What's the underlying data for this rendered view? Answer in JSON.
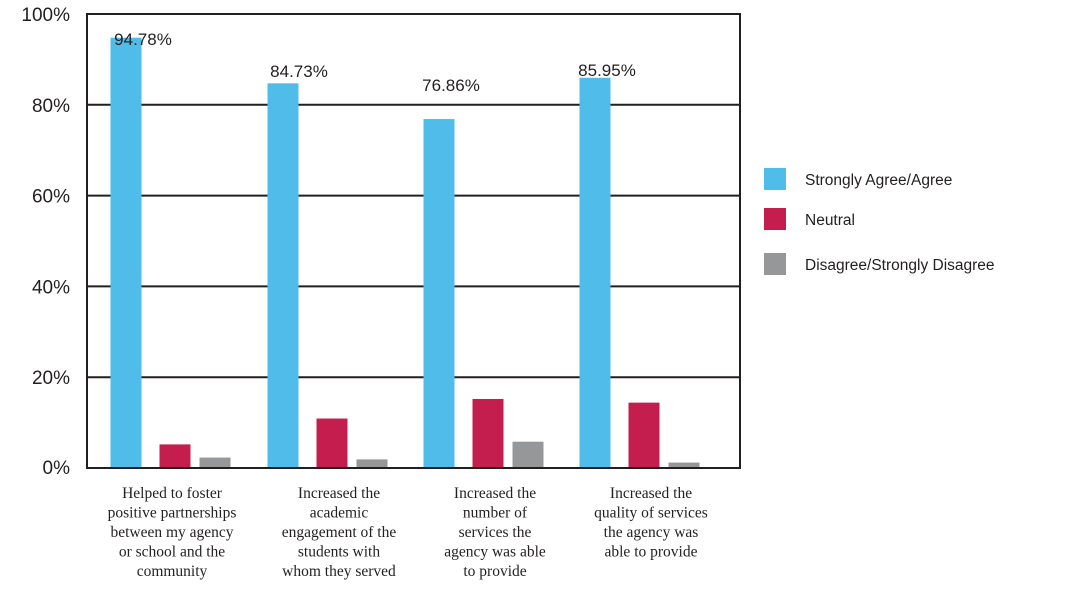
{
  "chart_data": {
    "type": "bar",
    "categories": [
      [
        "Helped to foster",
        "positive partnerships",
        "between my agency",
        "or school and the",
        "community"
      ],
      [
        "Increased the",
        "academic",
        "engagement of the",
        "students with",
        "whom they served"
      ],
      [
        "Increased the",
        "number of",
        "services the",
        "agency was able",
        "to provide"
      ],
      [
        "Increased the",
        "quality of services",
        "the agency was",
        "able to provide"
      ]
    ],
    "series": [
      {
        "name": "Strongly Agree/Agree",
        "color": "#4fbce9",
        "values": [
          94.78,
          84.73,
          76.86,
          85.95
        ]
      },
      {
        "name": "Neutral",
        "color": "#c41e4e",
        "values": [
          5.2,
          10.9,
          15.2,
          14.4
        ]
      },
      {
        "name": "Disagree/Strongly Disagree",
        "color": "#969799",
        "values": [
          2.3,
          1.9,
          5.8,
          1.2
        ]
      }
    ],
    "data_labels": [
      "94.78%",
      "84.73%",
      "76.86%",
      "85.95%"
    ],
    "y_ticks": [
      {
        "value": 0,
        "label": "0%"
      },
      {
        "value": 20,
        "label": "20%"
      },
      {
        "value": 40,
        "label": "40%"
      },
      {
        "value": 60,
        "label": "60%"
      },
      {
        "value": 80,
        "label": "80%"
      },
      {
        "value": 100,
        "label": "100%"
      }
    ],
    "ylim": [
      0,
      100
    ],
    "grid": true,
    "legend_position": "right"
  }
}
